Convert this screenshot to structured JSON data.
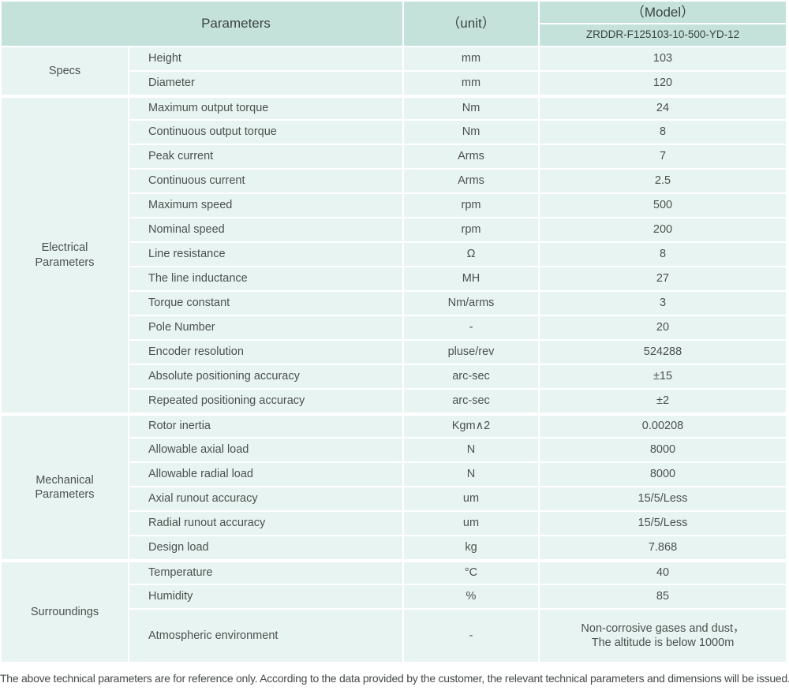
{
  "header": {
    "parameters_label": "Parameters",
    "unit_label": "（unit）",
    "model_label": "（Model）",
    "model_value": "ZRDDR-F125103-10-500-YD-12"
  },
  "groups": [
    {
      "category": "Specs",
      "rows": [
        {
          "param": "Height",
          "unit": "mm",
          "value": "103"
        },
        {
          "param": "Diameter",
          "unit": "mm",
          "value": "120"
        }
      ]
    },
    {
      "category": "Electrical\nParameters",
      "rows": [
        {
          "param": "Maximum output torque",
          "unit": "Nm",
          "value": "24"
        },
        {
          "param": "Continuous output torque",
          "unit": "Nm",
          "value": "8"
        },
        {
          "param": "Peak current",
          "unit": "Arms",
          "value": "7"
        },
        {
          "param": "Continuous current",
          "unit": "Arms",
          "value": "2.5"
        },
        {
          "param": "Maximum speed",
          "unit": "rpm",
          "value": "500"
        },
        {
          "param": "Nominal speed",
          "unit": "rpm",
          "value": "200"
        },
        {
          "param": "Line resistance",
          "unit": "Ω",
          "value": "8"
        },
        {
          "param": "The line inductance",
          "unit": "MH",
          "value": "27"
        },
        {
          "param": "Torque constant",
          "unit": "Nm/arms",
          "value": "3"
        },
        {
          "param": "Pole Number",
          "unit": "-",
          "value": "20"
        },
        {
          "param": "Encoder resolution",
          "unit": "pluse/rev",
          "value": "524288"
        },
        {
          "param": "Absolute positioning accuracy",
          "unit": "arc-sec",
          "value": "±15"
        },
        {
          "param": "Repeated positioning accuracy",
          "unit": "arc-sec",
          "value": "±2"
        }
      ]
    },
    {
      "category": "Mechanical\nParameters",
      "rows": [
        {
          "param": "Rotor inertia",
          "unit": "Kgm∧2",
          "value": "0.00208"
        },
        {
          "param": "Allowable axial load",
          "unit": "N",
          "value": "8000"
        },
        {
          "param": "Allowable radial load",
          "unit": "N",
          "value": "8000"
        },
        {
          "param": "Axial runout accuracy",
          "unit": "um",
          "value": "15/5/Less"
        },
        {
          "param": "Radial runout accuracy",
          "unit": "um",
          "value": "15/5/Less"
        },
        {
          "param": "Design load",
          "unit": "kg",
          "value": "7.868"
        }
      ]
    },
    {
      "category": "Surroundings",
      "rows": [
        {
          "param": "Temperature",
          "unit": "°C",
          "value": "40"
        },
        {
          "param": "Humidity",
          "unit": "%",
          "value": "85"
        },
        {
          "param": "Atmospheric environment",
          "unit": "-",
          "value": "Non-corrosive gases and dust，\nThe altitude is below 1000m"
        }
      ]
    }
  ],
  "footer": {
    "note": "The above technical parameters are for reference only. According to the data provided by the customer, the relevant technical parameters and dimensions will be issued."
  },
  "colors": {
    "header_bg": "#c4e2da",
    "row_bg": "#e8f4f1",
    "text": "#4b514f",
    "header_text": "#3c4341",
    "footer_text": "#454b49"
  }
}
